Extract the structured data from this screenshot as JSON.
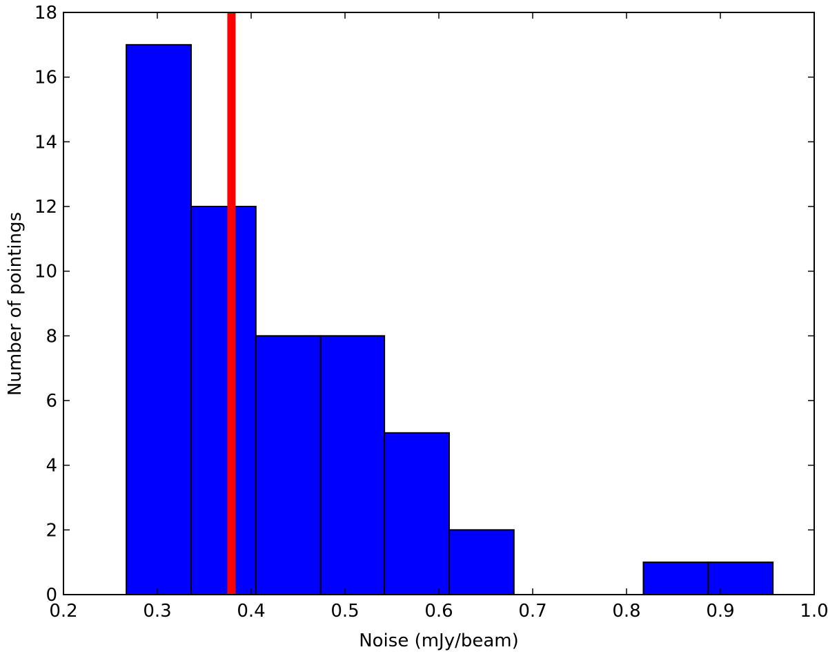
{
  "chart_data": {
    "type": "bar",
    "xlabel": "Noise (mJy/beam)",
    "ylabel": "Number of pointings",
    "xlim": [
      0.2,
      1.0
    ],
    "ylim": [
      0,
      18
    ],
    "xticks": [
      "0.2",
      "0.3",
      "0.4",
      "0.5",
      "0.6",
      "0.7",
      "0.8",
      "0.9",
      "1.0"
    ],
    "yticks": [
      "0",
      "2",
      "4",
      "6",
      "8",
      "10",
      "12",
      "14",
      "16",
      "18"
    ],
    "bin_edges": [
      0.267,
      0.336,
      0.405,
      0.474,
      0.542,
      0.611,
      0.68,
      0.749,
      0.818,
      0.887,
      0.956
    ],
    "values": [
      17,
      12,
      8,
      8,
      5,
      2,
      0,
      0,
      1,
      1
    ],
    "bar_color": "#0000ff",
    "vertical_line": {
      "x": 0.379,
      "color": "#ff0000"
    },
    "grid": false
  }
}
